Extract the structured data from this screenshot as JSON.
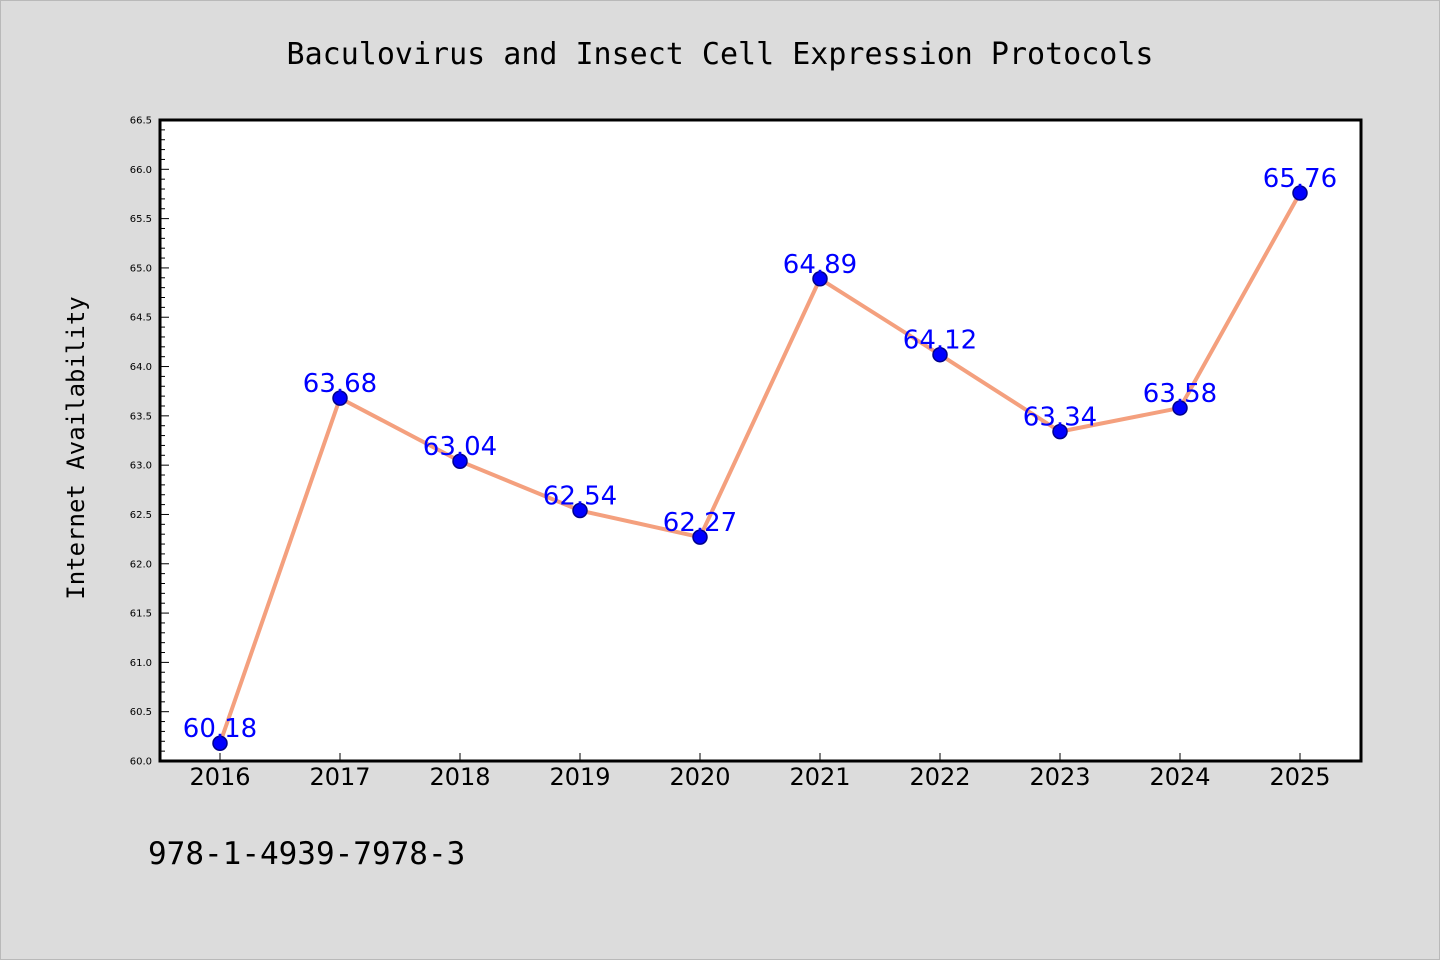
{
  "chart_data": {
    "type": "line",
    "title": "Baculovirus and Insect Cell Expression Protocols",
    "xlabel": "",
    "ylabel": "Internet Availability",
    "categories": [
      "2016",
      "2017",
      "2018",
      "2019",
      "2020",
      "2021",
      "2022",
      "2023",
      "2024",
      "2025"
    ],
    "series": [
      {
        "values": [
          60.18,
          63.68,
          63.04,
          62.54,
          62.27,
          64.89,
          64.12,
          63.34,
          63.58,
          65.76
        ],
        "data_labels": [
          "60.18",
          "63.68",
          "63.04",
          "62.54",
          "62.27",
          "64.89",
          "64.12",
          "63.34",
          "63.58",
          "65.76"
        ]
      }
    ],
    "ylim": [
      60.0,
      66.5
    ],
    "yticks": [
      "60.0",
      "60.5",
      "61.0",
      "61.5",
      "62.0",
      "62.5",
      "63.0",
      "63.5",
      "64.0",
      "64.5",
      "65.0",
      "65.5",
      "66.0",
      "66.5"
    ],
    "grid": false,
    "legend": "none",
    "colors": {
      "line": "#f4a07e",
      "marker": "#0000ff",
      "marker_edge": "#00008b",
      "data_label": "#0000ff",
      "plot_background": "#ffffff",
      "page_background": "#dcdcdc"
    }
  },
  "footer": {
    "isbn": "978-1-4939-7978-3"
  }
}
